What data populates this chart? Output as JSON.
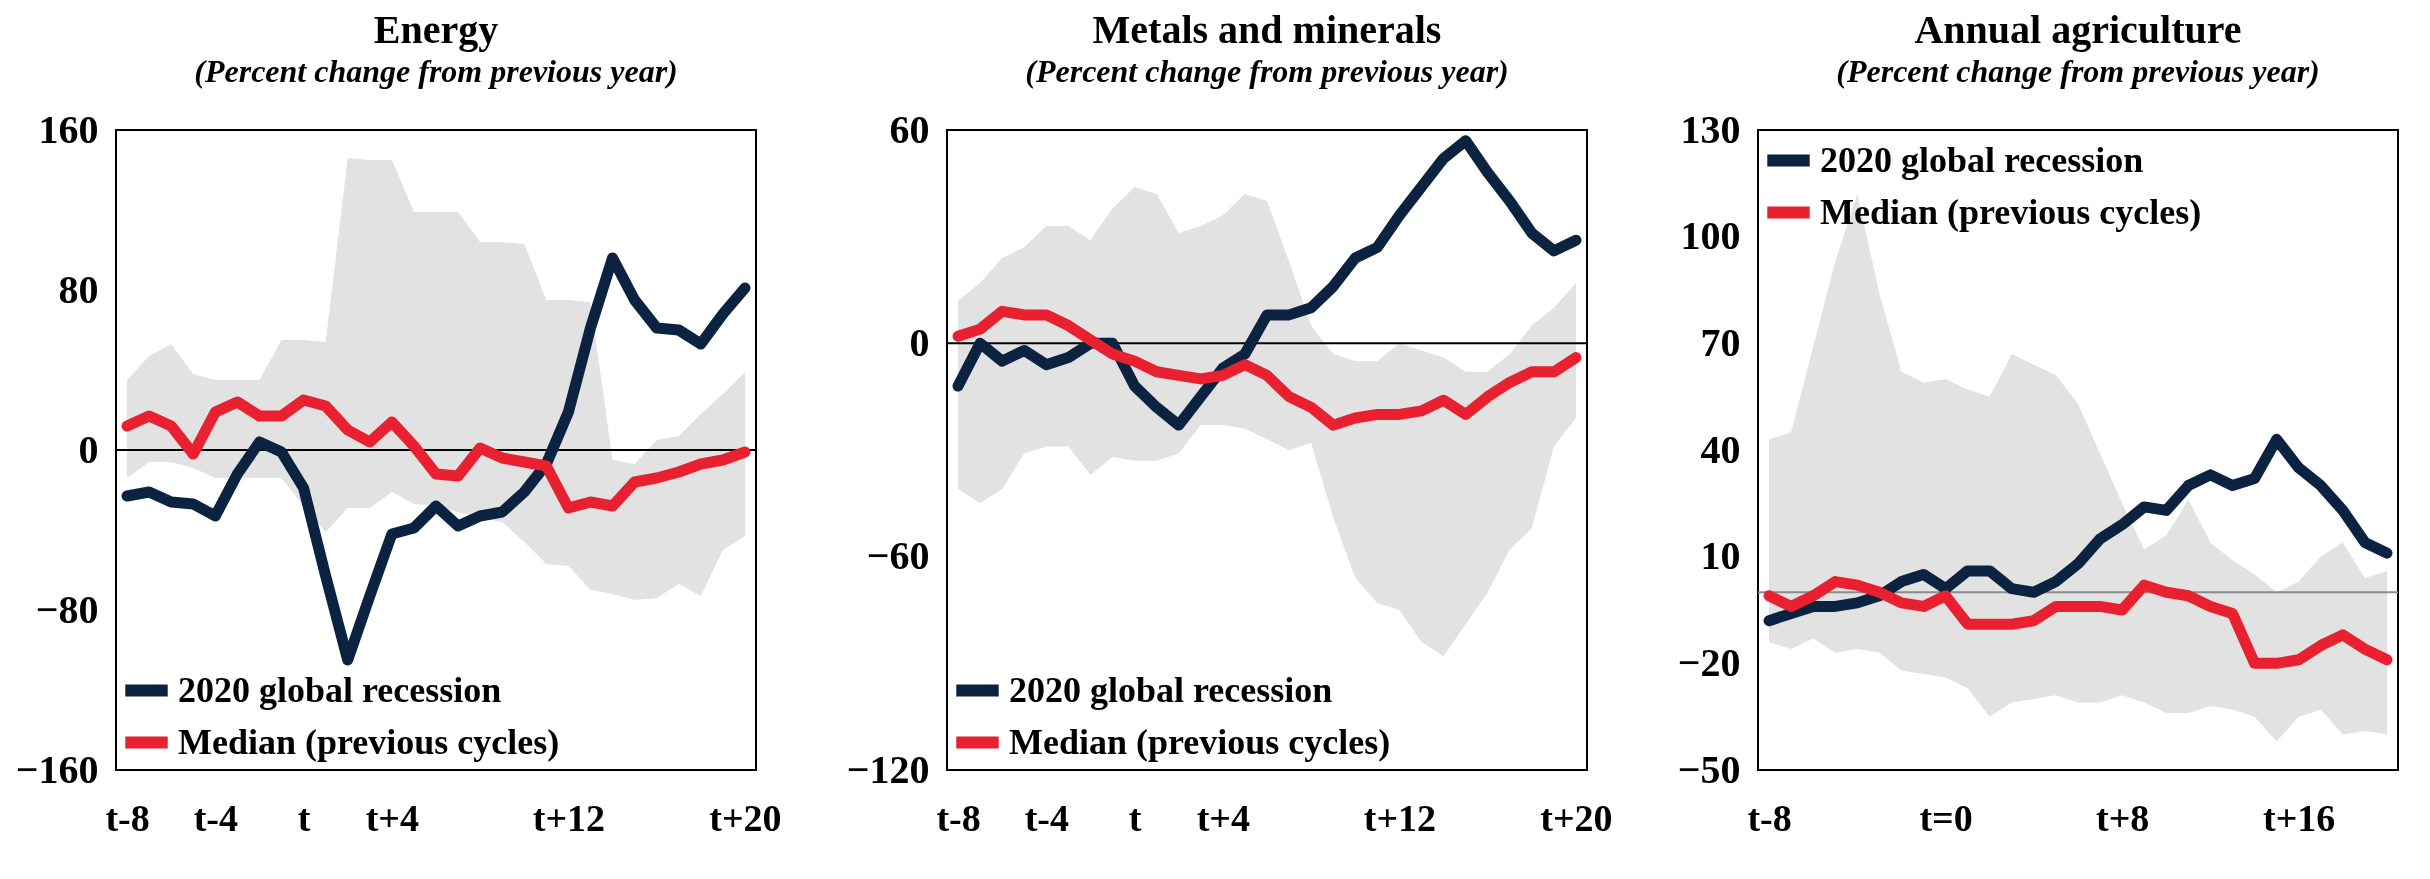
{
  "chart_data": [
    {
      "type": "line",
      "title": "Energy",
      "subtitle": "(Percent change from previous year)",
      "categories": [
        "t-8",
        null,
        null,
        null,
        "t-4",
        null,
        null,
        null,
        "t",
        null,
        null,
        null,
        "t+4",
        null,
        null,
        null,
        null,
        null,
        null,
        null,
        "t+12",
        null,
        null,
        null,
        null,
        null,
        null,
        null,
        "t+20"
      ],
      "ylim": [
        -160,
        160
      ],
      "yticks": [
        -160,
        -80,
        0,
        80,
        160
      ],
      "grid": false,
      "legend": "bottom left",
      "ref_lines": [
        {
          "axis": "y",
          "value": 0,
          "color": "#000000"
        }
      ],
      "series": [
        {
          "name": "2020 global recession",
          "color": "#0b2240",
          "values": [
            -23,
            -21,
            -26,
            -27,
            -33,
            -12,
            4,
            -1,
            -19,
            -63,
            -105,
            -73,
            -42,
            -39,
            -28,
            -38,
            -33,
            -31,
            -21,
            -7,
            19,
            61,
            96,
            75,
            61,
            60,
            53,
            68,
            81
          ]
        },
        {
          "name": "Median (previous cycles)",
          "color": "#e8202f",
          "values": [
            12,
            17,
            12,
            -2,
            19,
            24,
            17,
            17,
            25,
            22,
            10,
            4,
            14,
            2,
            -12,
            -13,
            1,
            -4,
            -6,
            -8,
            -29,
            -26,
            -28,
            -16,
            -14,
            -11,
            -7,
            -5,
            -1
          ],
          "lower": [
            -14,
            -6,
            -6,
            -9,
            -14,
            -14,
            -14,
            -14,
            -28,
            -41,
            -29,
            -29,
            -21,
            -27,
            -28,
            -31,
            -34,
            -36,
            -46,
            -57,
            -58,
            -70,
            -72,
            -75,
            -74,
            -67,
            -73,
            -50,
            -43
          ],
          "upper": [
            35,
            47,
            53,
            38,
            35,
            35,
            35,
            55,
            55,
            54,
            146,
            145,
            145,
            119,
            119,
            119,
            104,
            104,
            103,
            75,
            75,
            74,
            -5,
            -7,
            5,
            7,
            18,
            28,
            39
          ]
        }
      ]
    },
    {
      "type": "line",
      "title": "Metals and minerals",
      "subtitle": "(Percent change from previous year)",
      "categories": [
        "t-8",
        null,
        null,
        null,
        "t-4",
        null,
        null,
        null,
        "t",
        null,
        null,
        null,
        "t+4",
        null,
        null,
        null,
        null,
        null,
        null,
        null,
        "t+12",
        null,
        null,
        null,
        null,
        null,
        null,
        null,
        "t+20"
      ],
      "ylim": [
        -120,
        60
      ],
      "yticks": [
        -120,
        -60,
        0,
        60
      ],
      "grid": false,
      "legend": "bottom left",
      "ref_lines": [
        {
          "axis": "y",
          "value": 0,
          "color": "#000000"
        }
      ],
      "series": [
        {
          "name": "2020 global recession",
          "color": "#0b2240",
          "values": [
            -12,
            0,
            -5,
            -2,
            -6,
            -4,
            0,
            0,
            -12,
            -18,
            -23,
            -15,
            -7,
            -3,
            8,
            8,
            10,
            16,
            24,
            27,
            36,
            44,
            52,
            57,
            48,
            40,
            31,
            26,
            29
          ]
        },
        {
          "name": "Median (previous cycles)",
          "color": "#e8202f",
          "values": [
            2,
            4,
            9,
            8,
            8,
            5,
            1,
            -3,
            -5,
            -8,
            -9,
            -10,
            -9,
            -6,
            -9,
            -15,
            -18,
            -23,
            -21,
            -20,
            -20,
            -19,
            -16,
            -20,
            -15,
            -11,
            -8,
            -8,
            -4
          ],
          "lower": [
            -41,
            -45,
            -41,
            -31,
            -29,
            -29,
            -37,
            -32,
            -33,
            -33,
            -31,
            -23,
            -23,
            -24,
            -27,
            -30,
            -28,
            -49,
            -66,
            -73,
            -75,
            -84,
            -88,
            -79,
            -70,
            -58,
            -52,
            -29,
            -21
          ],
          "upper": [
            12,
            17,
            24,
            27,
            33,
            33,
            29,
            38,
            44,
            42,
            31,
            33,
            36,
            42,
            40,
            23,
            5,
            -3,
            -5,
            -5,
            0,
            -2,
            -4,
            -8,
            -8,
            -3,
            5,
            10,
            17
          ]
        }
      ]
    },
    {
      "type": "line",
      "title": "Annual agriculture",
      "subtitle": "(Percent change from previous year)",
      "categories": [
        "t-8",
        null,
        null,
        null,
        null,
        null,
        null,
        null,
        "t=0",
        null,
        null,
        null,
        null,
        null,
        null,
        null,
        "t+8",
        null,
        null,
        null,
        null,
        null,
        null,
        null,
        "t+16",
        null,
        null,
        null,
        null
      ],
      "ylim": [
        -50,
        130
      ],
      "yticks": [
        -50,
        -20,
        10,
        40,
        70,
        100,
        130
      ],
      "grid": false,
      "legend": "top left",
      "ref_lines": [
        {
          "axis": "y",
          "value": 0,
          "color": "#8c8c8c"
        }
      ],
      "series": [
        {
          "name": "2020 global recession",
          "color": "#0b2240",
          "values": [
            -8,
            -6,
            -4,
            -4,
            -3,
            -1,
            3,
            5,
            1,
            6,
            6,
            1,
            0,
            3,
            8,
            15,
            19,
            24,
            23,
            30,
            33,
            30,
            32,
            43,
            35,
            30,
            23,
            14,
            11
          ]
        },
        {
          "name": "Median (previous cycles)",
          "color": "#e8202f",
          "values": [
            -1,
            -4,
            -1,
            3,
            2,
            0,
            -3,
            -4,
            -1,
            -9,
            -9,
            -9,
            -8,
            -4,
            -4,
            -4,
            -5,
            2,
            0,
            -1,
            -4,
            -6,
            -20,
            -20,
            -19,
            -15,
            -12,
            -16,
            -19
          ],
          "lower": [
            -14,
            -16,
            -13,
            -17,
            -16,
            -17,
            -22,
            -23,
            -24,
            -27,
            -35,
            -31,
            -30,
            -29,
            -31,
            -31,
            -29,
            -31,
            -34,
            -34,
            -32,
            -33,
            -35,
            -42,
            -35,
            -33,
            -40,
            -39,
            -40
          ],
          "upper": [
            43,
            45,
            69,
            93,
            112,
            84,
            62,
            59,
            60,
            57,
            55,
            67,
            64,
            61,
            53,
            39,
            25,
            12,
            16,
            26,
            14,
            9,
            5,
            0,
            3,
            10,
            14,
            4,
            6
          ]
        }
      ]
    }
  ]
}
